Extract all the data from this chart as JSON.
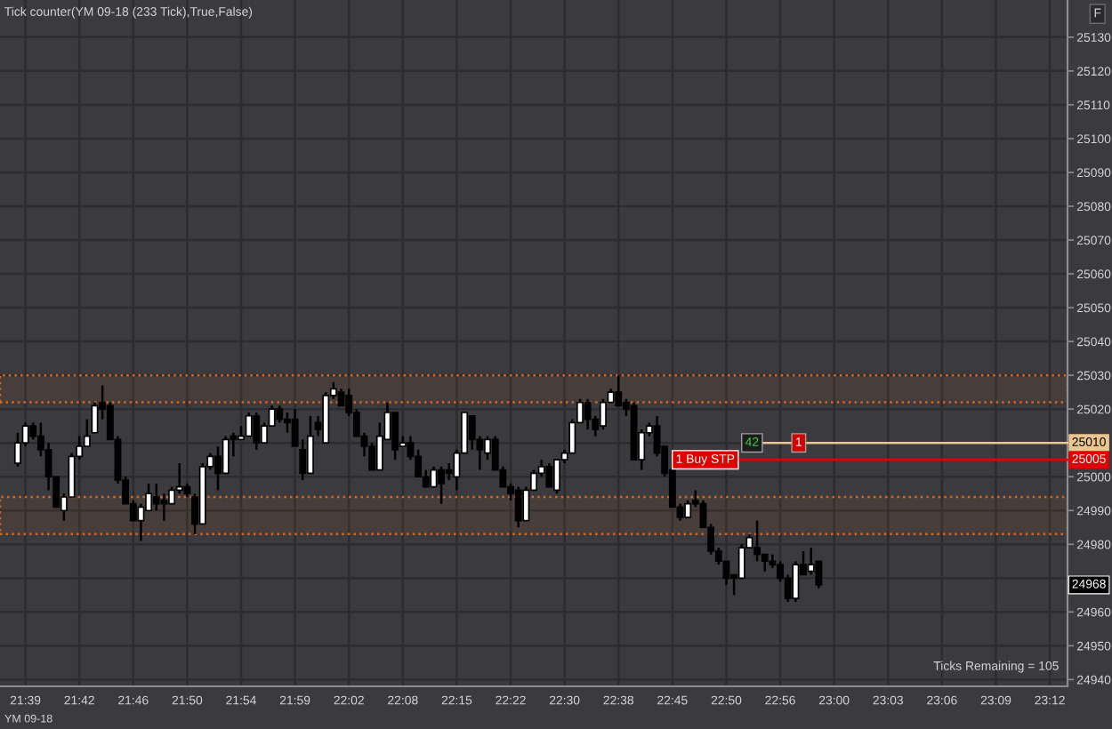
{
  "chart_data": {
    "type": "candlestick",
    "title": "Tick counter(YM 09-18 (233 Tick),True,False)",
    "categories": [
      null,
      "21:39",
      null,
      null,
      null,
      null,
      null,
      null,
      "21:42",
      null,
      null,
      null,
      null,
      null,
      null,
      "21:46",
      null,
      null,
      null,
      null,
      null,
      null,
      "21:50",
      null,
      null,
      null,
      null,
      null,
      null,
      "21:54",
      null,
      null,
      null,
      null,
      null,
      null,
      "21:59",
      null,
      null,
      null,
      null,
      null,
      null,
      "22:02",
      null,
      null,
      null,
      null,
      null,
      null,
      "22:08",
      null,
      null,
      null,
      null,
      null,
      null,
      "22:15",
      null,
      null,
      null,
      null,
      null,
      null,
      "22:22",
      null,
      null,
      null,
      null,
      null,
      null,
      "22:30",
      null,
      null,
      null,
      null,
      null,
      null,
      "22:38",
      null,
      null,
      null,
      null,
      null,
      null,
      "22:45",
      null,
      null,
      null,
      null,
      null,
      null,
      "22:50",
      null,
      null,
      null,
      null,
      null,
      null,
      "22:56",
      null,
      null,
      null,
      null,
      null,
      null,
      "23:00",
      null,
      null,
      null,
      null,
      null,
      null,
      "23:03",
      null,
      null,
      null,
      null,
      null,
      null,
      "23:06",
      null,
      null,
      null,
      null,
      null,
      null,
      "23:09",
      null,
      null,
      null,
      null,
      null,
      null,
      "23:12",
      null
    ],
    "ohlc": [
      [
        25004,
        25013,
        25003,
        25010
      ],
      [
        25010,
        25016,
        25009,
        25015
      ],
      [
        25015,
        25016,
        25011,
        25012
      ],
      [
        25012,
        25016,
        25006,
        25008
      ],
      [
        25008,
        25010,
        24996,
        25000
      ],
      [
        25000,
        25000,
        24991,
        24991
      ],
      [
        24990,
        24995,
        24987,
        24994
      ],
      [
        24994,
        25007,
        24994,
        25006
      ],
      [
        25006,
        25012,
        25005,
        25009
      ],
      [
        25009,
        25017,
        25009,
        25012
      ],
      [
        25013,
        25022,
        25013,
        25021
      ],
      [
        25022,
        25027,
        25017,
        25020
      ],
      [
        25021,
        25022,
        25011,
        25011
      ],
      [
        25011,
        25012,
        24998,
        24999
      ],
      [
        24999,
        25000,
        24992,
        24992
      ],
      [
        24992,
        24993,
        24987,
        24987
      ],
      [
        24987,
        24992,
        24981,
        24991
      ],
      [
        24990,
        24998,
        24990,
        24995
      ],
      [
        24994,
        24998,
        24990,
        24992
      ],
      [
        24993,
        24995,
        24987,
        24992
      ],
      [
        24992,
        24997,
        24992,
        24996
      ],
      [
        24996,
        25004,
        24995,
        24997
      ],
      [
        24997,
        24998,
        24994,
        24995
      ],
      [
        24994,
        24995,
        24983,
        24986
      ],
      [
        24986,
        25004,
        24986,
        25003
      ],
      [
        25003,
        25007,
        25002,
        25006
      ],
      [
        25006,
        25009,
        24996,
        25001
      ],
      [
        25001,
        25012,
        25001,
        25011
      ],
      [
        25012,
        25013,
        25006,
        25011
      ],
      [
        25011,
        25015,
        25011,
        25012
      ],
      [
        25012,
        25019,
        25012,
        25018
      ],
      [
        25018,
        25019,
        25008,
        25010
      ],
      [
        25010,
        25016,
        25010,
        25015
      ],
      [
        25015,
        25021,
        25015,
        25020
      ],
      [
        25020,
        25021,
        25016,
        25017
      ],
      [
        25017,
        25019,
        25013,
        25016
      ],
      [
        25017,
        25020,
        25009,
        25009
      ],
      [
        25008,
        25011,
        24999,
        25001
      ],
      [
        25001,
        25018,
        25001,
        25012
      ],
      [
        25016,
        25018,
        25012,
        25014
      ],
      [
        25010,
        25025,
        25010,
        25024
      ],
      [
        25024,
        25028,
        25023,
        25026
      ],
      [
        25025,
        25026,
        25021,
        25021
      ],
      [
        25024,
        25026,
        25018,
        25019
      ],
      [
        25019,
        25020,
        25012,
        25012
      ],
      [
        25012,
        25013,
        25006,
        25009
      ],
      [
        25009,
        25010,
        25002,
        25002
      ],
      [
        25002,
        25016,
        25002,
        25012
      ],
      [
        25011,
        25022,
        25011,
        25019
      ],
      [
        25019,
        25019,
        25005,
        25008
      ],
      [
        25009,
        25012,
        25009,
        25010
      ],
      [
        25010,
        25012,
        25005,
        25006
      ],
      [
        25006,
        25008,
        25000,
        25000
      ],
      [
        25000,
        25002,
        24997,
        24997
      ],
      [
        24997,
        25003,
        24997,
        25002
      ],
      [
        25002,
        25003,
        24992,
        24998
      ],
      [
        25002,
        25004,
        24999,
        25001
      ],
      [
        25000,
        25008,
        24996,
        25007
      ],
      [
        25007,
        25019,
        25007,
        25019
      ],
      [
        25018,
        25018,
        25008,
        25011
      ],
      [
        25011,
        25012,
        25002,
        25008
      ],
      [
        25007,
        25012,
        25005,
        25011
      ],
      [
        25011,
        25012,
        25002,
        25002
      ],
      [
        25002,
        25003,
        24997,
        24997
      ],
      [
        24997,
        24998,
        24993,
        24995
      ],
      [
        24996,
        24997,
        24985,
        24987
      ],
      [
        24987,
        24997,
        24987,
        24996
      ],
      [
        24996,
        25002,
        24996,
        25001
      ],
      [
        25001,
        25005,
        25000,
        25003
      ],
      [
        25003,
        25004,
        24997,
        24997
      ],
      [
        24996,
        25005,
        24995,
        25005
      ],
      [
        25005,
        25008,
        25004,
        25007
      ],
      [
        25007,
        25017,
        25007,
        25016
      ],
      [
        25016,
        25023,
        25016,
        25022
      ],
      [
        25022,
        25023,
        25014,
        25017
      ],
      [
        25017,
        25018,
        25012,
        25014
      ],
      [
        25015,
        25023,
        25014,
        25022
      ],
      [
        25022,
        25026,
        25022,
        25025
      ],
      [
        25025,
        25030,
        25021,
        25021
      ],
      [
        25022,
        25023,
        25018,
        25020
      ],
      [
        25021,
        25022,
        25005,
        25005
      ],
      [
        25005,
        25014,
        25002,
        25013
      ],
      [
        25013,
        25016,
        25012,
        25015
      ],
      [
        25015,
        25018,
        25006,
        25007
      ],
      [
        25009,
        25009,
        25000,
        25001
      ],
      [
        25002,
        25003,
        24991,
        24991
      ],
      [
        24991,
        24992,
        24987,
        24988
      ],
      [
        24988,
        24993,
        24988,
        24992
      ],
      [
        24993,
        24996,
        24991,
        24992
      ],
      [
        24992,
        24993,
        24985,
        24985
      ],
      [
        24985,
        24986,
        24977,
        24978
      ],
      [
        24978,
        24979,
        24974,
        24975
      ],
      [
        24975,
        24975,
        24968,
        24970
      ],
      [
        24971,
        24971,
        24965,
        24970
      ],
      [
        24970,
        24980,
        24970,
        24979
      ],
      [
        24979,
        24983,
        24979,
        24982
      ],
      [
        24979,
        24987,
        24975,
        24977
      ],
      [
        24977,
        24977,
        24972,
        24975
      ],
      [
        24975,
        24977,
        24973,
        24974
      ],
      [
        24974,
        24975,
        24969,
        24970
      ],
      [
        24970,
        24971,
        24963,
        24964
      ],
      [
        24964,
        24975,
        24963,
        24974
      ],
      [
        24974,
        24978,
        24971,
        24971
      ],
      [
        24972,
        24979,
        24971,
        24974
      ],
      [
        24975,
        24975,
        24967,
        24968
      ],
      null,
      null,
      null,
      null,
      null,
      null,
      null,
      null,
      null,
      null,
      null,
      null,
      null,
      null,
      null,
      null,
      null,
      null,
      null,
      null,
      null,
      null,
      null,
      null,
      null,
      null,
      null,
      null,
      null,
      null,
      null
    ],
    "ylim": [
      24938,
      25141
    ],
    "yticks": [
      24940,
      24950,
      24960,
      {
        "value": 24970,
        "label": null
      },
      24980,
      24990,
      25000,
      {
        "value": 25010,
        "label": null
      },
      25020,
      25030,
      25040,
      25050,
      25060,
      25070,
      25080,
      25090,
      25100,
      25110,
      25120,
      25130
    ],
    "grid": true,
    "ref_lines": [
      {
        "axis": "y",
        "value": 25010,
        "label": "25010",
        "color": "#eec48f"
      },
      {
        "axis": "y",
        "value": 25005,
        "label": "25005",
        "color": "#e00000"
      }
    ],
    "bands": [
      {
        "axis": "y",
        "from": 25022,
        "to": 25030,
        "color": "#d9661f"
      },
      {
        "axis": "y",
        "from": 24983,
        "to": 24994,
        "color": "#d9661f"
      }
    ],
    "annotations": [
      {
        "text": "42",
        "y": 25010
      },
      {
        "text": "1",
        "y": 25010
      },
      {
        "text": "1 Buy STP",
        "y": 25005
      },
      {
        "text": "24968",
        "y": 24968
      },
      "Ticks Remaining = 105",
      "YM 09-18",
      "F"
    ]
  }
}
